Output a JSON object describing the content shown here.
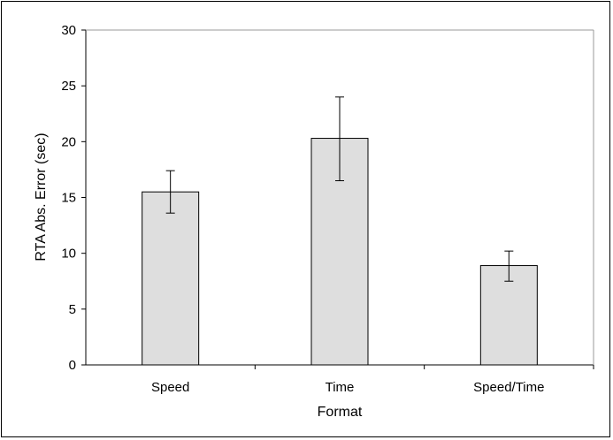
{
  "chart_data": {
    "type": "bar",
    "categories": [
      "Speed",
      "Time",
      "Speed/Time"
    ],
    "values": [
      15.5,
      20.3,
      8.9
    ],
    "error_low": [
      13.6,
      16.5,
      7.5
    ],
    "error_high": [
      17.4,
      24.0,
      10.2
    ],
    "title": "",
    "xlabel": "Format",
    "ylabel": "RTA Abs. Error (sec)",
    "ylim": [
      0,
      30
    ],
    "yticks": [
      "0",
      "5",
      "10",
      "15",
      "20",
      "25",
      "30"
    ],
    "grid": false,
    "legend": "none",
    "bar_color": "#dedede",
    "stroke_color": "#000000",
    "plot_border_color": "#999999"
  }
}
